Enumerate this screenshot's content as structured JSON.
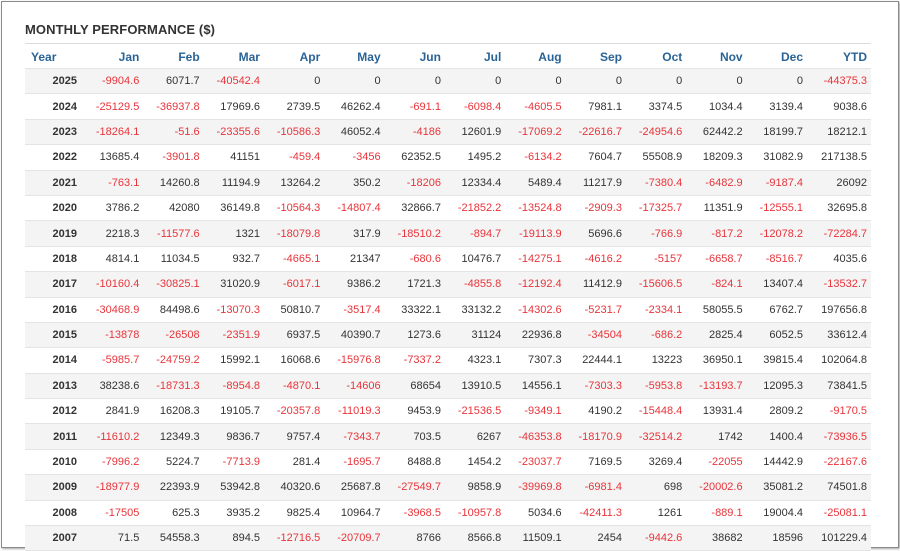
{
  "title": "MONTHLY PERFORMANCE ($)",
  "colors": {
    "header": "#2a6496",
    "negative": "#e8343a",
    "text": "#333333"
  },
  "columns": [
    "Year",
    "Jan",
    "Feb",
    "Mar",
    "Apr",
    "May",
    "Jun",
    "Jul",
    "Aug",
    "Sep",
    "Oct",
    "Nov",
    "Dec",
    "YTD"
  ],
  "rows": [
    [
      "2025",
      "-9904.6",
      "6071.7",
      "-40542.4",
      "0",
      "0",
      "0",
      "0",
      "0",
      "0",
      "0",
      "0",
      "0",
      "-44375.3"
    ],
    [
      "2024",
      "-25129.5",
      "-36937.8",
      "17969.6",
      "2739.5",
      "46262.4",
      "-691.1",
      "-6098.4",
      "-4605.5",
      "7981.1",
      "3374.5",
      "1034.4",
      "3139.4",
      "9038.6"
    ],
    [
      "2023",
      "-18264.1",
      "-51.6",
      "-23355.6",
      "-10586.3",
      "46052.4",
      "-4186",
      "12601.9",
      "-17069.2",
      "-22616.7",
      "-24954.6",
      "62442.2",
      "18199.7",
      "18212.1"
    ],
    [
      "2022",
      "13685.4",
      "-3901.8",
      "41151",
      "-459.4",
      "-3456",
      "62352.5",
      "1495.2",
      "-6134.2",
      "7604.7",
      "55508.9",
      "18209.3",
      "31082.9",
      "217138.5"
    ],
    [
      "2021",
      "-763.1",
      "14260.8",
      "11194.9",
      "13264.2",
      "350.2",
      "-18206",
      "12334.4",
      "5489.4",
      "11217.9",
      "-7380.4",
      "-6482.9",
      "-9187.4",
      "26092"
    ],
    [
      "2020",
      "3786.2",
      "42080",
      "36149.8",
      "-10564.3",
      "-14807.4",
      "32866.7",
      "-21852.2",
      "-13524.8",
      "-2909.3",
      "-17325.7",
      "11351.9",
      "-12555.1",
      "32695.8"
    ],
    [
      "2019",
      "2218.3",
      "-11577.6",
      "1321",
      "-18079.8",
      "317.9",
      "-18510.2",
      "-894.7",
      "-19113.9",
      "5696.6",
      "-766.9",
      "-817.2",
      "-12078.2",
      "-72284.7"
    ],
    [
      "2018",
      "4814.1",
      "11034.5",
      "932.7",
      "-4665.1",
      "21347",
      "-680.6",
      "10476.7",
      "-14275.1",
      "-4616.2",
      "-5157",
      "-6658.7",
      "-8516.7",
      "4035.6"
    ],
    [
      "2017",
      "-10160.4",
      "-30825.1",
      "31020.9",
      "-6017.1",
      "9386.2",
      "1721.3",
      "-4855.8",
      "-12192.4",
      "11412.9",
      "-15606.5",
      "-824.1",
      "13407.4",
      "-13532.7"
    ],
    [
      "2016",
      "-30468.9",
      "84498.6",
      "-13070.3",
      "50810.7",
      "-3517.4",
      "33322.1",
      "33132.2",
      "-14302.6",
      "-5231.7",
      "-2334.1",
      "58055.5",
      "6762.7",
      "197656.8"
    ],
    [
      "2015",
      "-13878",
      "-26508",
      "-2351.9",
      "6937.5",
      "40390.7",
      "1273.6",
      "31124",
      "22936.8",
      "-34504",
      "-686.2",
      "2825.4",
      "6052.5",
      "33612.4"
    ],
    [
      "2014",
      "-5985.7",
      "-24759.2",
      "15992.1",
      "16068.6",
      "-15976.8",
      "-7337.2",
      "4323.1",
      "7307.3",
      "22444.1",
      "13223",
      "36950.1",
      "39815.4",
      "102064.8"
    ],
    [
      "2013",
      "38238.6",
      "-18731.3",
      "-8954.8",
      "-4870.1",
      "-14606",
      "68654",
      "13910.5",
      "14556.1",
      "-7303.3",
      "-5953.8",
      "-13193.7",
      "12095.3",
      "73841.5"
    ],
    [
      "2012",
      "2841.9",
      "16208.3",
      "19105.7",
      "-20357.8",
      "-11019.3",
      "9453.9",
      "-21536.5",
      "-9349.1",
      "4190.2",
      "-15448.4",
      "13931.4",
      "2809.2",
      "-9170.5"
    ],
    [
      "2011",
      "-11610.2",
      "12349.3",
      "9836.7",
      "9757.4",
      "-7343.7",
      "703.5",
      "6267",
      "-46353.8",
      "-18170.9",
      "-32514.2",
      "1742",
      "1400.4",
      "-73936.5"
    ],
    [
      "2010",
      "-7996.2",
      "5224.7",
      "-7713.9",
      "281.4",
      "-1695.7",
      "8488.8",
      "1454.2",
      "-23037.7",
      "7169.5",
      "3269.4",
      "-22055",
      "14442.9",
      "-22167.6"
    ],
    [
      "2009",
      "-18977.9",
      "22393.9",
      "53942.8",
      "40320.6",
      "25687.8",
      "-27549.7",
      "9858.9",
      "-39969.8",
      "-6981.4",
      "698",
      "-20002.6",
      "35081.2",
      "74501.8"
    ],
    [
      "2008",
      "-17505",
      "625.3",
      "3935.2",
      "9825.4",
      "10964.7",
      "-3968.5",
      "-10957.8",
      "5034.6",
      "-42411.3",
      "1261",
      "-889.1",
      "19004.4",
      "-25081.1"
    ],
    [
      "2007",
      "71.5",
      "54558.3",
      "894.5",
      "-12716.5",
      "-20709.7",
      "8766",
      "8566.8",
      "11509.1",
      "2454",
      "-9442.6",
      "38682",
      "18596",
      "101229.4"
    ]
  ]
}
